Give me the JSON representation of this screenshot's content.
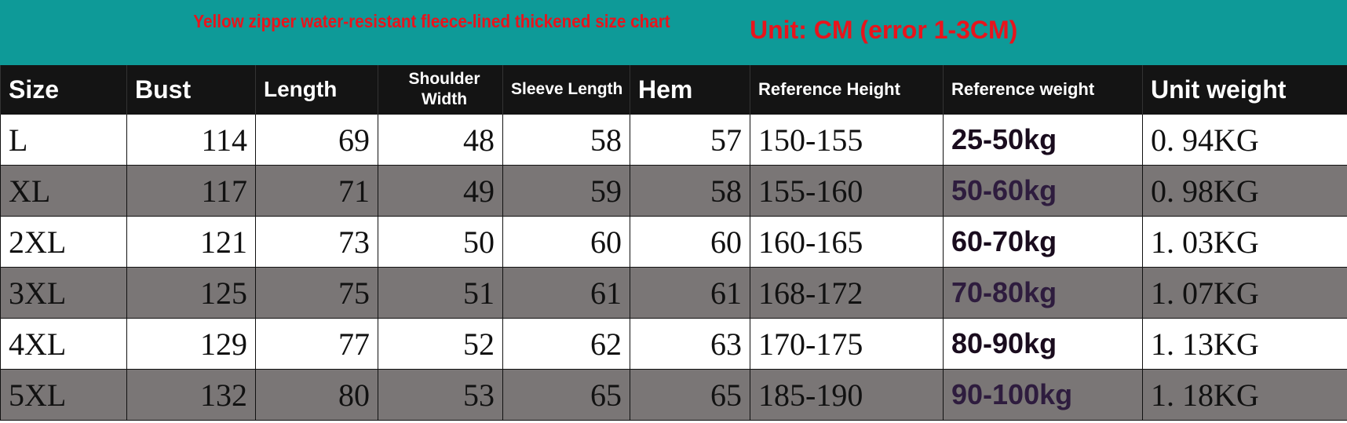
{
  "title": "Yellow zipper water-resistant fleece-lined thickened size chart",
  "unit_note": "Unit: CM (error 1-3CM)",
  "colors": {
    "banner": "#0e9a98",
    "title": "#e8141c",
    "header": "#141414",
    "alt_row": "#7a7676"
  },
  "headers": [
    "Size",
    "Bust",
    "Length",
    "Shoulder Width",
    "Sleeve Length",
    "Hem",
    "Reference Height",
    "Reference weight",
    "Unit weight"
  ],
  "rows": [
    [
      "L",
      "114",
      "69",
      "48",
      "58",
      "57",
      "150-155",
      "25-50kg",
      "0. 94KG"
    ],
    [
      "XL",
      "117",
      "71",
      "49",
      "59",
      "58",
      "155-160",
      "50-60kg",
      "0. 98KG"
    ],
    [
      "2XL",
      "121",
      "73",
      "50",
      "60",
      "60",
      "160-165",
      "60-70kg",
      "1. 03KG"
    ],
    [
      "3XL",
      "125",
      "75",
      "51",
      "61",
      "61",
      "168-172",
      "70-80kg",
      "1. 07KG"
    ],
    [
      "4XL",
      "129",
      "77",
      "52",
      "62",
      "63",
      "170-175",
      "80-90kg",
      "1. 13KG"
    ],
    [
      "5XL",
      "132",
      "80",
      "53",
      "65",
      "65",
      "185-190",
      "90-100kg",
      "1. 18KG"
    ]
  ]
}
